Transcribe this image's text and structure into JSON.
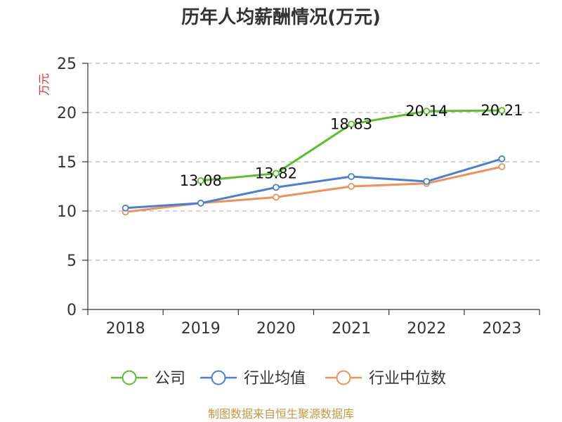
{
  "chart_data": {
    "type": "line",
    "title": "历年人均薪酬情况(万元)",
    "ylabel": "万元",
    "xlabel": "",
    "categories": [
      "2018",
      "2019",
      "2020",
      "2021",
      "2022",
      "2023"
    ],
    "ylim": [
      0,
      25
    ],
    "yticks": [
      0,
      5,
      10,
      15,
      20,
      25
    ],
    "grid": true,
    "legend_position": "bottom",
    "series": [
      {
        "name": "公司",
        "color": "#5cbf2a",
        "values": [
          null,
          13.08,
          13.82,
          18.83,
          20.14,
          20.21
        ],
        "labels": [
          "",
          "13.08",
          "13.82",
          "18.83",
          "20.14",
          "20.21"
        ]
      },
      {
        "name": "行业均值",
        "color": "#4a7fd6",
        "values": [
          10.3,
          10.8,
          12.4,
          13.5,
          13.0,
          15.3
        ]
      },
      {
        "name": "行业中位数",
        "color": "#f0915a",
        "values": [
          9.9,
          10.8,
          11.4,
          12.5,
          12.8,
          14.5
        ]
      }
    ]
  },
  "footer": {
    "source": "制图数据来自恒生聚源数据库",
    "source_color": "#c8963c"
  },
  "colors": {
    "ylabel": "#e03030",
    "axis": "#333333",
    "grid": "#bbbbbb"
  }
}
